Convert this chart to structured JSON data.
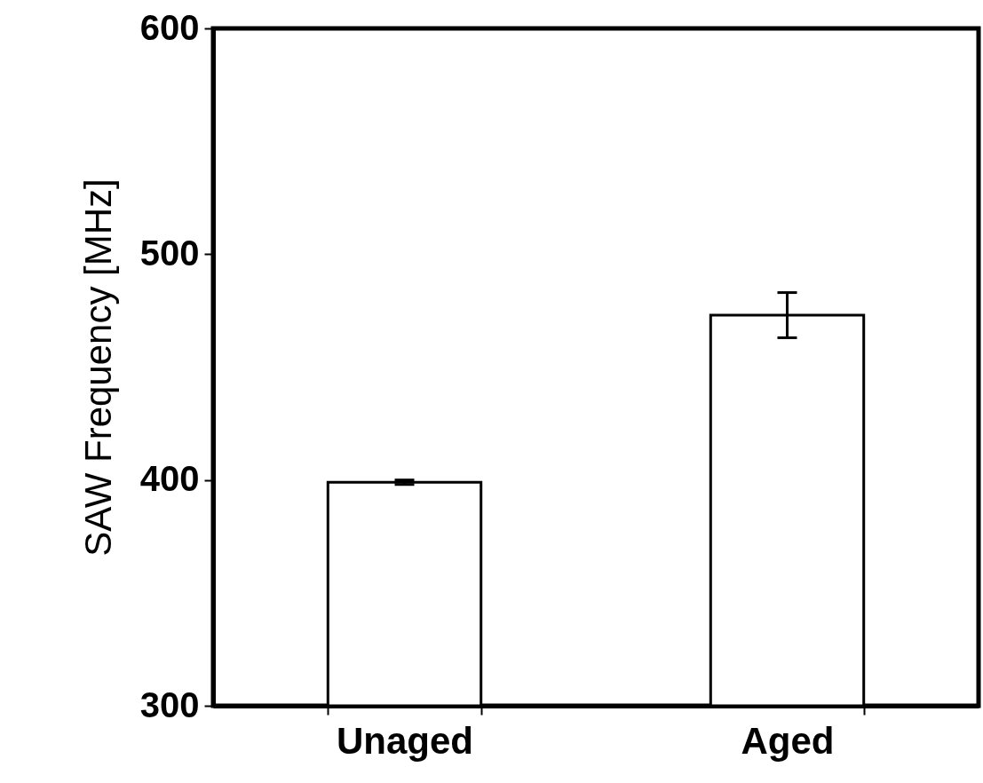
{
  "chart_data": {
    "type": "bar",
    "ylabel": "SAW Frequency [MHz]",
    "categories": [
      "Unaged",
      "Aged"
    ],
    "values": [
      399,
      473
    ],
    "errors": [
      1,
      10
    ],
    "color": "#ffffff",
    "ylim": [
      300,
      600
    ],
    "yticks": [
      300,
      400,
      500,
      600
    ],
    "grid": false
  }
}
